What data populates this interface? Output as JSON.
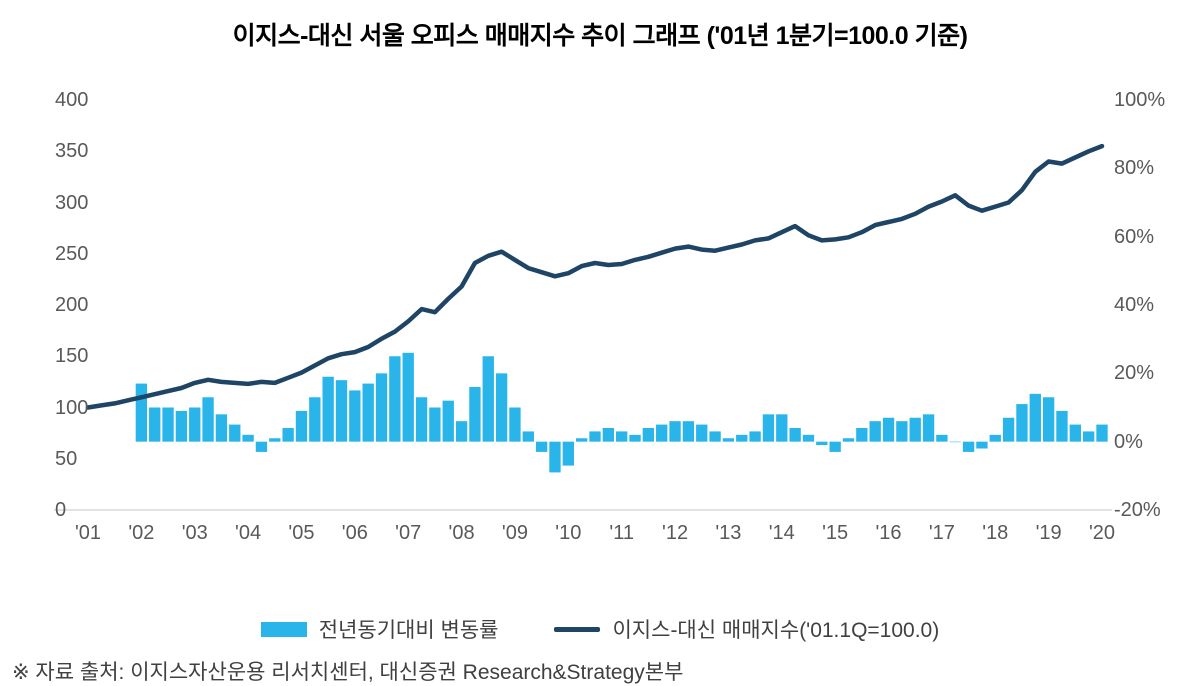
{
  "title": "이지스-대신 서울 오피스 매매지수 추이 그래프 ('01년 1분기=100.0 기준)",
  "legend": {
    "bar_label": "전년동기대비 변동률",
    "line_label": "이지스-대신 매매지수('01.1Q=100.0)"
  },
  "source": "※ 자료 출처: 이지스자산운용 리서치센터, 대신증권 Research&Strategy본부",
  "colors": {
    "bar": "#29B5E9",
    "line": "#1E4466",
    "axis_text": "#595959",
    "axis_line": "#D9D9D9"
  },
  "chart_data": {
    "type": "combo",
    "title": "이지스-대신 서울 오피스 매매지수 추이 그래프 ('01년 1분기=100.0 기준)",
    "x_tick_labels": [
      "'01",
      "'02",
      "'03",
      "'04",
      "'05",
      "'06",
      "'07",
      "'08",
      "'09",
      "'10",
      "'11",
      "'12",
      "'13",
      "'14",
      "'15",
      "'16",
      "'17",
      "'18",
      "'19",
      "'20"
    ],
    "points_per_year": 4,
    "left_axis": {
      "min": 0,
      "max": 400,
      "tick_step": 50,
      "tick_labels": [
        "0",
        "50",
        "100",
        "150",
        "200",
        "250",
        "300",
        "350",
        "400"
      ]
    },
    "right_axis": {
      "min": -20,
      "max": 100,
      "tick_step": 20,
      "tick_labels": [
        "-20%",
        "0%",
        "20%",
        "40%",
        "60%",
        "80%",
        "100%"
      ]
    },
    "grid": false,
    "legend_position": "bottom",
    "series": [
      {
        "name": "전년동기대비 변동률",
        "type": "bar",
        "axis": "right",
        "unit": "%",
        "values": [
          null,
          null,
          null,
          null,
          17,
          10,
          10,
          9,
          10,
          13,
          8,
          5,
          2,
          -3,
          1,
          4,
          9,
          13,
          19,
          18,
          15,
          17,
          20,
          25,
          26,
          13,
          10,
          12,
          6,
          16,
          25,
          20,
          10,
          3,
          -3,
          -9,
          -7,
          1,
          3,
          4,
          3,
          2,
          4,
          5,
          6,
          6,
          5,
          3,
          1,
          2,
          3,
          8,
          8,
          4,
          2,
          -1,
          -3,
          1,
          4,
          6,
          7,
          6,
          7,
          8,
          2,
          0,
          -3,
          -2,
          2,
          7,
          11,
          14,
          13,
          9,
          5,
          3,
          5
        ]
      },
      {
        "name": "이지스-대신 매매지수('01.1Q=100.0)",
        "type": "line",
        "axis": "left",
        "values": [
          100,
          102,
          104,
          107,
          110,
          113,
          116,
          119,
          124,
          127,
          125,
          124,
          123,
          125,
          124,
          129,
          134,
          141,
          148,
          152,
          154,
          159,
          167,
          174,
          184,
          196,
          193,
          206,
          218,
          241,
          248,
          252,
          244,
          236,
          232,
          228,
          231,
          238,
          241,
          239,
          240,
          244,
          247,
          251,
          255,
          257,
          254,
          253,
          256,
          259,
          263,
          265,
          271,
          277,
          268,
          263,
          264,
          266,
          271,
          278,
          281,
          284,
          289,
          296,
          301,
          307,
          297,
          292,
          296,
          300,
          312,
          330,
          340,
          338,
          344,
          350,
          355
        ]
      }
    ]
  }
}
